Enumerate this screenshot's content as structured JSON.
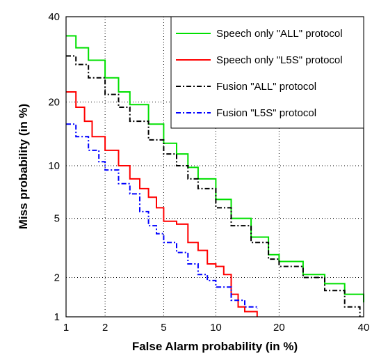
{
  "chart_data": {
    "type": "line",
    "title": "",
    "xlabel": "False Alarm probability (in %)",
    "ylabel": "Miss probability (in %)",
    "xscale": "probit",
    "yscale": "probit",
    "xlim": [
      1,
      40
    ],
    "ylim": [
      1,
      40
    ],
    "grid": true,
    "grid_style": "dotted",
    "legend_position": "top-right",
    "xticks": [
      1,
      2,
      5,
      10,
      20,
      40
    ],
    "yticks": [
      1,
      2,
      5,
      10,
      20,
      40
    ],
    "xtick_labels": [
      "1",
      "2",
      "5",
      "10",
      "20",
      "40"
    ],
    "ytick_labels": [
      "1",
      "2",
      "5",
      "10",
      "20",
      "40"
    ],
    "series": [
      {
        "name": "Speech only \"ALL\" protocol",
        "color": "#00e000",
        "dash": "solid",
        "x": [
          1,
          1.2,
          1.5,
          2,
          2.5,
          3,
          4,
          5,
          6,
          7,
          8,
          10,
          12,
          15,
          18,
          20,
          25,
          30,
          35,
          40
        ],
        "y": [
          35,
          32,
          29,
          25,
          22,
          19.5,
          16,
          13,
          11.5,
          9.8,
          8.5,
          6.5,
          5,
          3.8,
          2.9,
          2.6,
          2.1,
          1.8,
          1.5,
          1.3
        ]
      },
      {
        "name": "Speech only \"L5S\" protocol",
        "color": "#ff0000",
        "dash": "solid",
        "x": [
          1,
          1.2,
          1.4,
          1.6,
          2,
          2.5,
          3,
          3.5,
          4,
          4.5,
          5,
          6,
          7,
          8,
          9,
          10,
          11,
          12,
          13,
          14,
          16
        ],
        "y": [
          22,
          19,
          16.5,
          14,
          12,
          10,
          8.5,
          7.5,
          6.7,
          5.8,
          4.8,
          4.6,
          3.5,
          3.1,
          2.5,
          2.4,
          2.1,
          1.5,
          1.2,
          1.1,
          1.0
        ]
      },
      {
        "name": "Fusion \"ALL\" protocol",
        "color": "#000000",
        "dash": "dashdot",
        "x": [
          1,
          1.2,
          1.5,
          2,
          2.5,
          3,
          4,
          5,
          6,
          7,
          8,
          10,
          12,
          15,
          18,
          20,
          25,
          30,
          35,
          39
        ],
        "y": [
          30,
          28,
          25,
          21.5,
          19,
          16.5,
          13.5,
          11.5,
          10,
          8.5,
          7.5,
          5.8,
          4.5,
          3.5,
          2.7,
          2.4,
          2,
          1.6,
          1.2,
          1.0
        ]
      },
      {
        "name": "Fusion \"L5S\" protocol",
        "color": "#0000ff",
        "dash": "dashdot",
        "x": [
          1,
          1.2,
          1.5,
          1.8,
          2,
          2.5,
          3,
          3.5,
          4,
          4.5,
          5,
          6,
          7,
          8,
          9,
          10,
          12,
          14,
          16
        ],
        "y": [
          16,
          14,
          12,
          10.5,
          9.5,
          8,
          7,
          5.5,
          4.5,
          4,
          3.5,
          3,
          2.5,
          2.1,
          1.9,
          1.7,
          1.35,
          1.2,
          1.15
        ]
      }
    ]
  }
}
